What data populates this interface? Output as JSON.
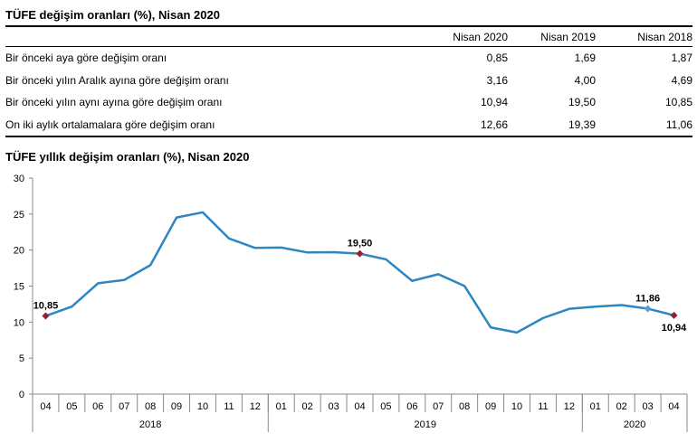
{
  "table": {
    "title": "TÜFE değişim oranları (%), Nisan 2020",
    "headers": [
      "Nisan 2020",
      "Nisan 2019",
      "Nisan 2018"
    ],
    "rows": [
      {
        "label": "Bir önceki aya göre değişim oranı",
        "values": [
          "0,85",
          "1,69",
          "1,87"
        ]
      },
      {
        "label": "Bir önceki yılın Aralık ayına göre değişim oranı",
        "values": [
          "3,16",
          "4,00",
          "4,69"
        ]
      },
      {
        "label": "Bir önceki yılın aynı ayına göre değişim oranı",
        "values": [
          "10,94",
          "19,50",
          "10,85"
        ]
      },
      {
        "label": "On iki aylık ortalamalara göre değişim oranı",
        "values": [
          "12,66",
          "19,39",
          "11,06"
        ]
      }
    ]
  },
  "chart_data": {
    "type": "line",
    "title": "TÜFE yıllık değişim oranları (%), Nisan 2020",
    "ylim": [
      0,
      30
    ],
    "yticks": [
      0,
      5,
      10,
      15,
      20,
      25,
      30
    ],
    "categories": [
      "04",
      "05",
      "06",
      "07",
      "08",
      "09",
      "10",
      "11",
      "12",
      "01",
      "02",
      "03",
      "04",
      "05",
      "06",
      "07",
      "08",
      "09",
      "10",
      "11",
      "12",
      "01",
      "02",
      "03",
      "04"
    ],
    "years": [
      {
        "label": "2018",
        "start": 0,
        "count": 9
      },
      {
        "label": "2019",
        "start": 9,
        "count": 12
      },
      {
        "label": "2020",
        "start": 21,
        "count": 4
      }
    ],
    "values": [
      10.85,
      12.15,
      15.39,
      15.85,
      17.9,
      24.52,
      25.24,
      21.62,
      20.3,
      20.35,
      19.67,
      19.71,
      19.5,
      18.71,
      15.72,
      16.65,
      15.01,
      9.26,
      8.55,
      10.56,
      11.84,
      12.15,
      12.37,
      11.86,
      10.94
    ],
    "annotations": [
      {
        "index": 0,
        "label": "10,85",
        "pos": "above",
        "marker": "#8b2332"
      },
      {
        "index": 12,
        "label": "19,50",
        "pos": "above",
        "marker": "#8b2332"
      },
      {
        "index": 23,
        "label": "11,86",
        "pos": "above",
        "marker": "#5b9bd5"
      },
      {
        "index": 24,
        "label": "10,94",
        "pos": "below",
        "marker": "#8b2332"
      }
    ],
    "line_color": "#2e86c1"
  }
}
